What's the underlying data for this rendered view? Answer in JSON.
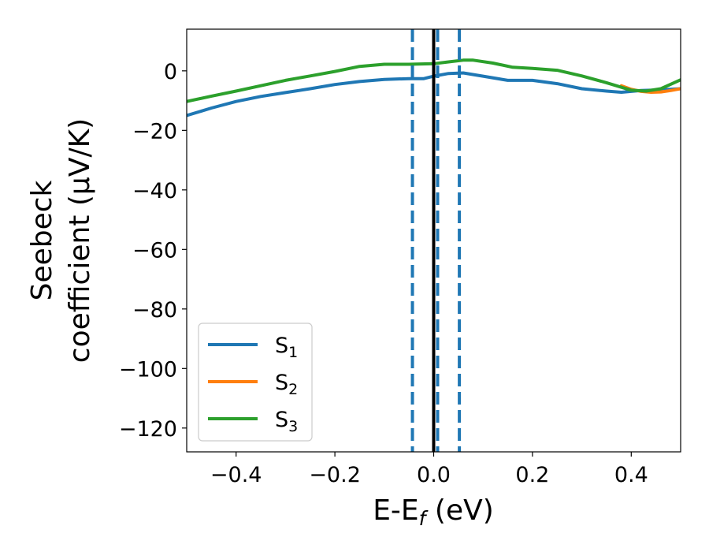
{
  "chart_data": {
    "type": "line",
    "xlabel": "E-E",
    "xlabel_sub": "f",
    "xlabel_unit": " (eV)",
    "ylabel_line1": "Seebeck",
    "ylabel_line2": "coefficient  (μV/K)",
    "xlim": [
      -0.5,
      0.5
    ],
    "ylim": [
      -128,
      14
    ],
    "xticks": [
      -0.4,
      -0.2,
      0.0,
      0.2,
      0.4
    ],
    "xtick_labels": [
      "−0.4",
      "−0.2",
      "0.0",
      "0.2",
      "0.4"
    ],
    "yticks": [
      0,
      -20,
      -40,
      -60,
      -80,
      -100,
      -120
    ],
    "ytick_labels": [
      "0",
      "−20",
      "−40",
      "−60",
      "−80",
      "−100",
      "−120"
    ],
    "grid": false,
    "legend_position": "lower-left",
    "vertical_lines": [
      {
        "x": 0.0,
        "style": "solid",
        "color": "#000000"
      },
      {
        "x": -0.043,
        "style": "dashed",
        "color": "#1f77b4"
      },
      {
        "x": 0.008,
        "style": "dashed",
        "color": "#1f77b4"
      },
      {
        "x": 0.052,
        "style": "dashed",
        "color": "#1f77b4"
      }
    ],
    "series": [
      {
        "name": "S",
        "sub": "1",
        "color": "#1f77b4",
        "x": [
          -0.5,
          -0.45,
          -0.4,
          -0.35,
          -0.3,
          -0.25,
          -0.2,
          -0.15,
          -0.1,
          -0.05,
          -0.02,
          0.0,
          0.03,
          0.06,
          0.1,
          0.15,
          0.2,
          0.25,
          0.3,
          0.35,
          0.38,
          0.42,
          0.46,
          0.5
        ],
        "y": [
          -15,
          -12.5,
          -10.3,
          -8.6,
          -7.3,
          -6.0,
          -4.6,
          -3.6,
          -2.9,
          -2.6,
          -2.6,
          -1.8,
          -0.9,
          -0.7,
          -1.8,
          -3.2,
          -3.2,
          -4.3,
          -6.0,
          -6.8,
          -7.2,
          -6.6,
          -6.4,
          -6.0
        ]
      },
      {
        "name": "S",
        "sub": "2",
        "color": "#ff7f0e",
        "x": [
          0.38,
          0.4,
          0.42,
          0.44,
          0.46,
          0.48,
          0.5
        ],
        "y": [
          -5.0,
          -6.2,
          -6.9,
          -7.2,
          -7.1,
          -6.6,
          -6.0
        ]
      },
      {
        "name": "S",
        "sub": "3",
        "color": "#2ca02c",
        "x": [
          -0.5,
          -0.45,
          -0.4,
          -0.35,
          -0.3,
          -0.25,
          -0.2,
          -0.15,
          -0.1,
          -0.05,
          0.0,
          0.03,
          0.06,
          0.08,
          0.12,
          0.16,
          0.2,
          0.25,
          0.3,
          0.35,
          0.4,
          0.43,
          0.46,
          0.5
        ],
        "y": [
          -10.3,
          -8.5,
          -6.8,
          -5.0,
          -3.2,
          -1.7,
          -0.2,
          1.5,
          2.2,
          2.2,
          2.4,
          3.0,
          3.6,
          3.6,
          2.6,
          1.2,
          0.8,
          0.2,
          -1.7,
          -4.0,
          -6.5,
          -6.8,
          -6.0,
          -3.0
        ]
      }
    ]
  }
}
